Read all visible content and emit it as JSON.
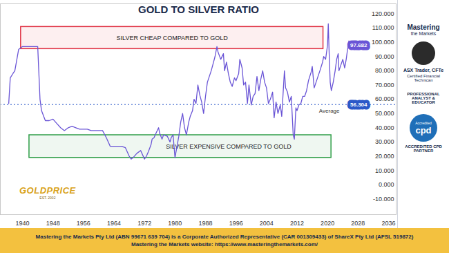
{
  "chart_data": {
    "type": "line",
    "title": "GOLD TO SILVER RATIO",
    "x": [
      1936.4,
      1936.8,
      1937.5,
      1938,
      1939,
      1940,
      1941,
      1942,
      1943,
      1944,
      1944.6,
      1945,
      1946,
      1947,
      1948,
      1949,
      1950,
      1951,
      1952,
      1953,
      1954,
      1955,
      1956,
      1957,
      1958,
      1959,
      1960,
      1961,
      1962,
      1963,
      1964,
      1965,
      1966,
      1967,
      1968,
      1968.5,
      1969,
      1970,
      1971,
      1972,
      1972.5,
      1973,
      1973.7,
      1974,
      1974.5,
      1975,
      1975.7,
      1976,
      1976.6,
      1977,
      1978,
      1978.7,
      1979,
      1979.5,
      1980,
      1980.4,
      1981,
      1981.5,
      1982,
      1982.5,
      1983,
      1983.6,
      1984,
      1984.6,
      1985,
      1985.5,
      1986,
      1986.5,
      1987,
      1987.5,
      1988,
      1988.5,
      1989,
      1989.5,
      1990,
      1990.5,
      1991,
      1991.3,
      1992,
      1992.7,
      1993,
      1993.5,
      1994,
      1994.5,
      1995,
      1995.6,
      1996,
      1996.7,
      1997,
      1997.6,
      1998,
      1998.5,
      1999,
      1999.4,
      2000,
      2000.5,
      2001,
      2001.5,
      2002,
      2002.5,
      2003,
      2003.5,
      2004,
      2004.5,
      2005,
      2005.6,
      2006,
      2006.5,
      2007,
      2007.6,
      2008,
      2008.7,
      2009,
      2009.5,
      2010,
      2010.5,
      2011,
      2011.3,
      2011.7,
      2012,
      2012.5,
      2013,
      2013.5,
      2014,
      2014.5,
      2015,
      2015.7,
      2016,
      2016.5,
      2017,
      2017.5,
      2018,
      2018.7,
      2019,
      2019.5,
      2020,
      2020.2,
      2020.4,
      2020.7,
      2021,
      2021.5,
      2022,
      2022.4,
      2022.8,
      2023,
      2023.5,
      2024,
      2024.5,
      2024.9,
      2025.2,
      2025.4,
      2025.6,
      2025.8
    ],
    "values": [
      57,
      75,
      78,
      80,
      95,
      97,
      97,
      97,
      97,
      97,
      60,
      52,
      45,
      45,
      46,
      43,
      40,
      38,
      40,
      41,
      40,
      39,
      39,
      39,
      38,
      38,
      38,
      38,
      33,
      27,
      27,
      27,
      27,
      26,
      20,
      18,
      19,
      22,
      24,
      18,
      20,
      23,
      28,
      32,
      33,
      36,
      40,
      36,
      32,
      35,
      34,
      30,
      33,
      35,
      19,
      25,
      34,
      44,
      50,
      40,
      35,
      44,
      48,
      52,
      60,
      57,
      70,
      63,
      58,
      50,
      62,
      72,
      76,
      80,
      85,
      90,
      97,
      93,
      88,
      92,
      80,
      86,
      78,
      72,
      69,
      75,
      73,
      78,
      88,
      82,
      70,
      72,
      57,
      70,
      56,
      62,
      64,
      76,
      66,
      74,
      80,
      72,
      68,
      57,
      60,
      65,
      47,
      58,
      50,
      56,
      48,
      80,
      68,
      65,
      58,
      62,
      35,
      32,
      54,
      52,
      56,
      57,
      62,
      62,
      66,
      73,
      79,
      83,
      68,
      72,
      76,
      80,
      86,
      90,
      88,
      98,
      113,
      95,
      72,
      66,
      72,
      80,
      88,
      92,
      80,
      84,
      88,
      82,
      88,
      94,
      97,
      101,
      97.682
    ],
    "color": "#6a55d6",
    "xlim": [
      1934.2,
      2038
    ],
    "xticks": [
      1940,
      1948,
      1956,
      1964,
      1972,
      1980,
      1988,
      1996,
      2004,
      2012,
      2020,
      2028,
      2036
    ],
    "ylim": [
      -21,
      127
    ],
    "yticks": [
      {
        "value": 120,
        "label": "120.000"
      },
      {
        "value": 110,
        "label": "110.000"
      },
      {
        "value": 100,
        "label": "100.000"
      },
      {
        "value": 90,
        "label": "90.000"
      },
      {
        "value": 80,
        "label": "80.000"
      },
      {
        "value": 70,
        "label": "70.000"
      },
      {
        "value": 60,
        "label": "60.000"
      },
      {
        "value": 50,
        "label": "50.000"
      },
      {
        "value": 40,
        "label": "40.000"
      },
      {
        "value": 30,
        "label": "30.000"
      },
      {
        "value": 20,
        "label": "20.000"
      },
      {
        "value": 10,
        "label": "10.000"
      },
      {
        "value": 0,
        "label": "0.000"
      },
      {
        "value": -10,
        "label": "-10.000"
      }
    ],
    "grid": false,
    "average": {
      "value": 56.304,
      "label": "Average",
      "color": "#2b58c8"
    },
    "zones": [
      {
        "label": "SILVER CHEAP COMPARED TO GOLD",
        "x": [
          1939.6,
          2018.9
        ],
        "y": [
          95.3,
          110.8
        ],
        "color": "#e03345"
      },
      {
        "label": "SILVER EXPENSIVE COMPARED TO GOLD",
        "x": [
          1941.8,
          2021
        ],
        "y": [
          18.9,
          34.8
        ],
        "color": "#2f9e48"
      }
    ],
    "logo": {
      "name": "GOLDPRICE",
      "tagline": "EST. 2002"
    }
  },
  "sidebar": {
    "brand": "Mastering",
    "brand_sub": "the Markets",
    "author": "ASX Trader, CFTe",
    "certification": "Certified Financial Technican",
    "role": "PROFESSIONAL ANALYST & EDUCATOR",
    "badge_top": "Accredited",
    "badge": "cpd",
    "partner": "ACCREDITED CPD PARTNER"
  },
  "footer": [
    "Mastering the Markets Pty Ltd (ABN 99671 639 704) is a Corporate Authorized Representative (CAR 001309433) of ShareX Pty Ltd (AFSL 519872)",
    "Mastering the Markets website: https://www.masteringthemarkets.com/"
  ]
}
